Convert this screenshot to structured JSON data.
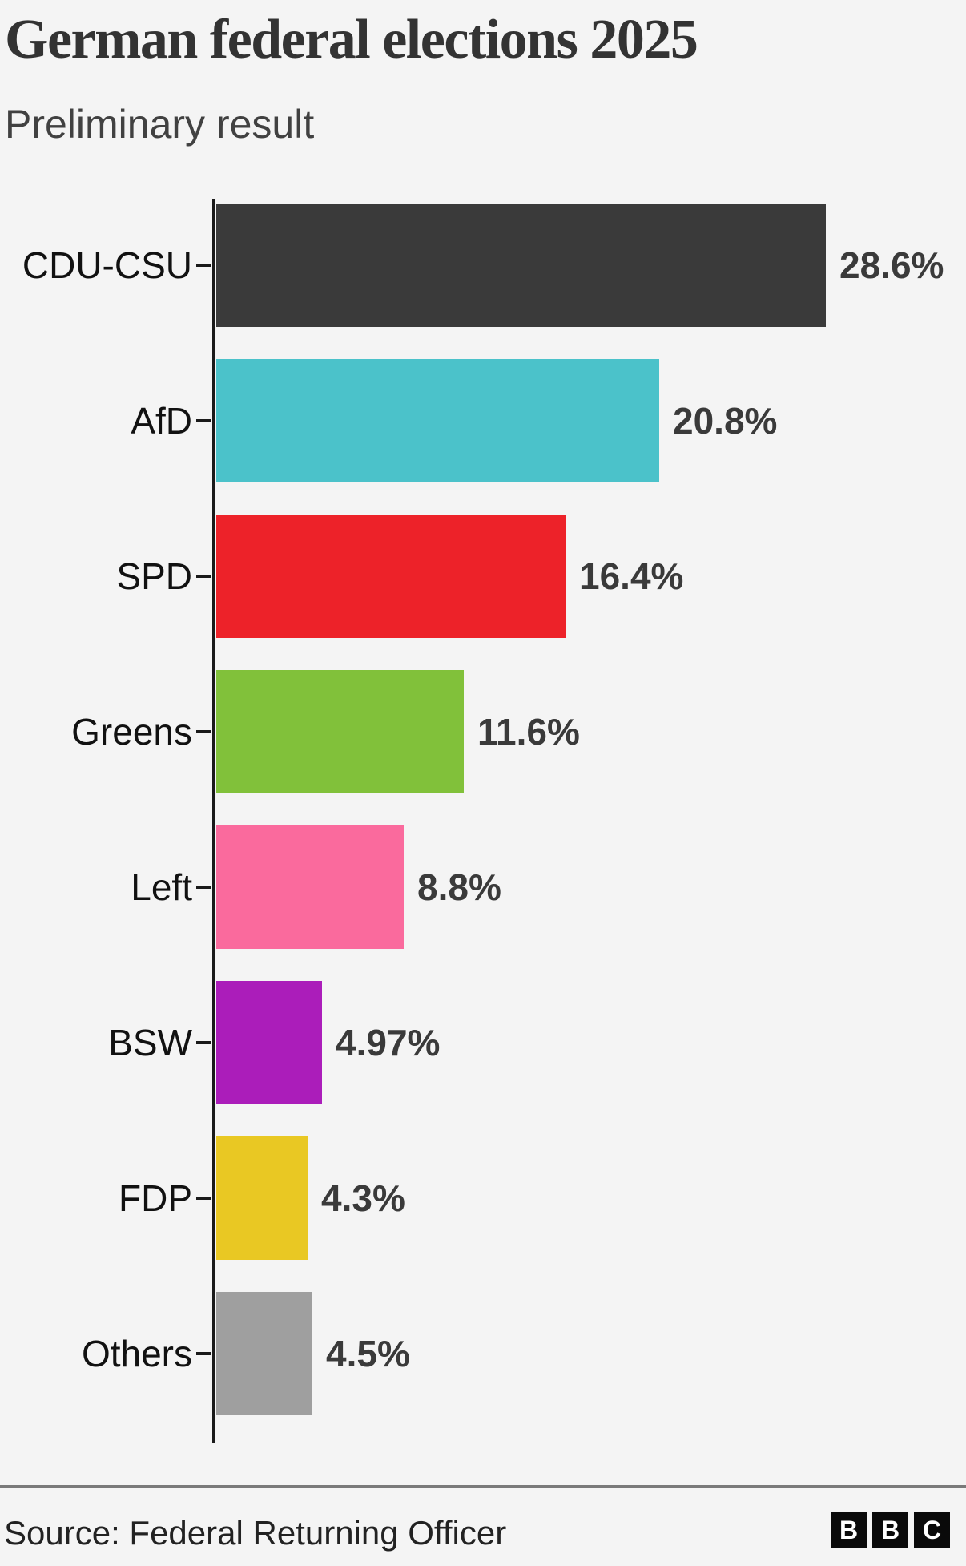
{
  "header": {
    "title": "German federal elections 2025",
    "subtitle": "Preliminary result"
  },
  "chart_data": {
    "type": "bar",
    "orientation": "horizontal",
    "title": "German federal elections 2025",
    "subtitle": "Preliminary result",
    "categories": [
      "CDU-CSU",
      "AfD",
      "SPD",
      "Greens",
      "Left",
      "BSW",
      "FDP",
      "Others"
    ],
    "values": [
      28.6,
      20.8,
      16.4,
      11.6,
      8.8,
      4.97,
      4.3,
      4.5
    ],
    "value_labels": [
      "28.6%",
      "20.8%",
      "16.4%",
      "11.6%",
      "8.8%",
      "4.97%",
      "4.3%",
      "4.5%"
    ],
    "colors": [
      "#3a3a3a",
      "#4bc2ca",
      "#ed2229",
      "#81c13a",
      "#fa6a9d",
      "#ab1dba",
      "#e9c823",
      "#9f9f9f"
    ],
    "unit": "%",
    "xlim": [
      0,
      30
    ],
    "grid": false,
    "legend": "none",
    "axis_color": "#1a1a1a",
    "background_color": "#f4f4f4"
  },
  "footer": {
    "source": "Source: Federal Returning Officer",
    "logo_name": "bbc-logo",
    "logo_letters": [
      "B",
      "B",
      "C"
    ]
  }
}
